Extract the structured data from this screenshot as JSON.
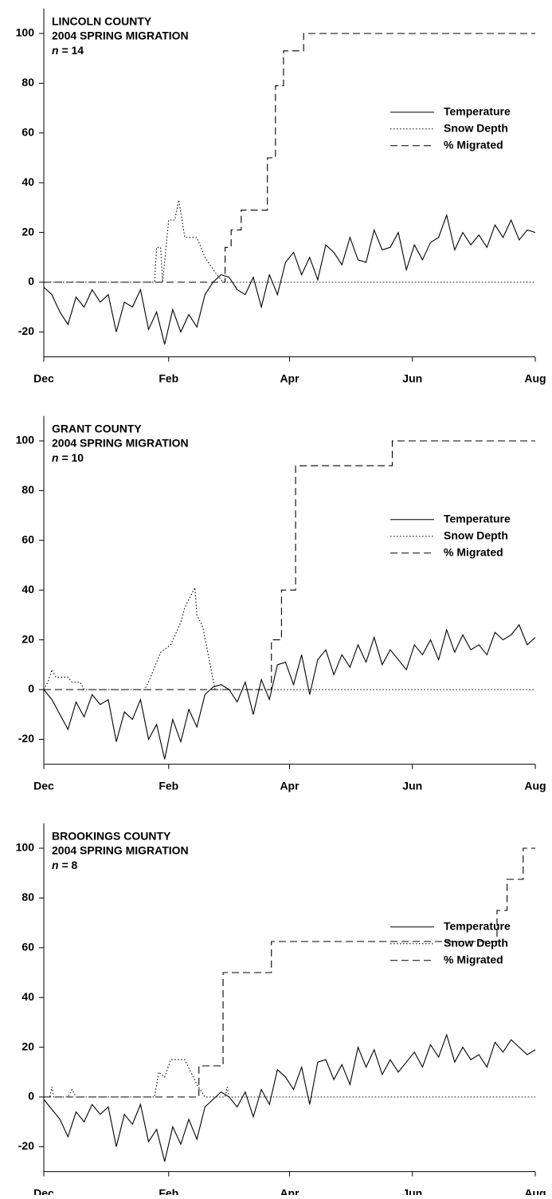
{
  "chart_data": [
    {
      "type": "line",
      "title": "LINCOLN COUNTY",
      "subtitle": "2004 SPRING MIGRATION",
      "annotation": "n = 14",
      "xlim": [
        0,
        244
      ],
      "xticks": [
        {
          "value": 0,
          "label": "Dec"
        },
        {
          "value": 62,
          "label": "Feb"
        },
        {
          "value": 122,
          "label": "Apr"
        },
        {
          "value": 183,
          "label": "Jun"
        },
        {
          "value": 244,
          "label": "Aug"
        }
      ],
      "ylim": [
        -30,
        110
      ],
      "yticks": [
        -20,
        0,
        20,
        40,
        60,
        80,
        100
      ],
      "legend": "right",
      "series": [
        {
          "name": "Temperature",
          "color": "#000000",
          "dash": "solid",
          "x": [
            0,
            4,
            8,
            12,
            16,
            20,
            24,
            28,
            32,
            36,
            40,
            44,
            48,
            52,
            56,
            60,
            64,
            68,
            72,
            76,
            80,
            84,
            88,
            92,
            96,
            100,
            104,
            108,
            112,
            116,
            120,
            124,
            128,
            132,
            136,
            140,
            144,
            148,
            152,
            156,
            160,
            164,
            168,
            172,
            176,
            180,
            184,
            188,
            192,
            196,
            200,
            204,
            208,
            212,
            216,
            220,
            224,
            228,
            232,
            236,
            240,
            244
          ],
          "values": [
            -2,
            -5,
            -12,
            -17,
            -6,
            -10,
            -3,
            -8,
            -5,
            -20,
            -8,
            -10,
            -3,
            -19,
            -12,
            -25,
            -11,
            -20,
            -13,
            -18,
            -5,
            0,
            3,
            2,
            -3,
            -5,
            2,
            -10,
            3,
            -5,
            8,
            12,
            3,
            10,
            1,
            15,
            12,
            7,
            18,
            9,
            8,
            21,
            13,
            14,
            20,
            5,
            15,
            9,
            16,
            18,
            27,
            13,
            20,
            15,
            19,
            14,
            23,
            18,
            25,
            17,
            21,
            20
          ]
        },
        {
          "name": "Snow Depth",
          "color": "#000000",
          "dash": "dotted",
          "x": [
            0,
            55,
            56,
            58,
            59,
            62,
            65,
            67,
            68,
            70,
            76,
            80,
            85,
            89,
            244
          ],
          "values": [
            0,
            0,
            14,
            14,
            0,
            25,
            25,
            33,
            28,
            18,
            18,
            10,
            4,
            0,
            0
          ]
        },
        {
          "name": "% Migrated",
          "color": "#000000",
          "dash": "dashed",
          "step": "post",
          "x": [
            0,
            90,
            93,
            98,
            111,
            115,
            119,
            129,
            244
          ],
          "values": [
            0,
            14,
            21,
            29,
            50,
            79,
            93,
            100,
            100
          ]
        }
      ]
    },
    {
      "type": "line",
      "title": "GRANT COUNTY",
      "subtitle": "2004 SPRING MIGRATION",
      "annotation": "n = 10",
      "xlim": [
        0,
        244
      ],
      "xticks": [
        {
          "value": 0,
          "label": "Dec"
        },
        {
          "value": 62,
          "label": "Feb"
        },
        {
          "value": 122,
          "label": "Apr"
        },
        {
          "value": 183,
          "label": "Jun"
        },
        {
          "value": 244,
          "label": "Aug"
        }
      ],
      "ylim": [
        -30,
        110
      ],
      "yticks": [
        -20,
        0,
        20,
        40,
        60,
        80,
        100
      ],
      "legend": "right",
      "series": [
        {
          "name": "Temperature",
          "color": "#000000",
          "dash": "solid",
          "x": [
            0,
            4,
            8,
            12,
            16,
            20,
            24,
            28,
            32,
            36,
            40,
            44,
            48,
            52,
            56,
            60,
            64,
            68,
            72,
            76,
            80,
            84,
            88,
            92,
            96,
            100,
            104,
            108,
            112,
            116,
            120,
            124,
            128,
            132,
            136,
            140,
            144,
            148,
            152,
            156,
            160,
            164,
            168,
            172,
            176,
            180,
            184,
            188,
            192,
            196,
            200,
            204,
            208,
            212,
            216,
            220,
            224,
            228,
            232,
            236,
            240,
            244
          ],
          "values": [
            0,
            -4,
            -10,
            -16,
            -5,
            -11,
            -2,
            -6,
            -4,
            -21,
            -9,
            -12,
            -4,
            -20,
            -14,
            -28,
            -12,
            -21,
            -8,
            -15,
            -2,
            1,
            2,
            0,
            -5,
            3,
            -10,
            4,
            -4,
            10,
            11,
            2,
            14,
            -2,
            12,
            16,
            6,
            14,
            9,
            18,
            11,
            21,
            10,
            16,
            12,
            8,
            18,
            14,
            20,
            12,
            24,
            15,
            22,
            16,
            18,
            14,
            23,
            20,
            22,
            26,
            18,
            21
          ]
        },
        {
          "name": "Snow Depth",
          "color": "#000000",
          "dash": "dotted",
          "x": [
            0,
            2,
            4,
            6,
            12,
            14,
            18,
            20,
            50,
            52,
            58,
            63,
            68,
            70,
            75,
            76,
            79,
            85,
            244
          ],
          "values": [
            0,
            3,
            8,
            5,
            5,
            3,
            3,
            0,
            0,
            3,
            15,
            18,
            27,
            33,
            41,
            30,
            25,
            0,
            0
          ]
        },
        {
          "name": "% Migrated",
          "color": "#000000",
          "dash": "dashed",
          "step": "post",
          "x": [
            0,
            113,
            118,
            125,
            173,
            244
          ],
          "values": [
            0,
            20,
            40,
            90,
            100,
            100
          ]
        }
      ]
    },
    {
      "type": "line",
      "title": "BROOKINGS COUNTY",
      "subtitle": "2004 SPRING MIGRATION",
      "annotation": "n = 8",
      "xlim": [
        0,
        244
      ],
      "xticks": [
        {
          "value": 0,
          "label": "Dec"
        },
        {
          "value": 62,
          "label": "Feb"
        },
        {
          "value": 122,
          "label": "Apr"
        },
        {
          "value": 183,
          "label": "Jun"
        },
        {
          "value": 244,
          "label": "Aug"
        }
      ],
      "ylim": [
        -30,
        110
      ],
      "yticks": [
        -20,
        0,
        20,
        40,
        60,
        80,
        100
      ],
      "legend": "right",
      "series": [
        {
          "name": "Temperature",
          "color": "#000000",
          "dash": "solid",
          "x": [
            0,
            4,
            8,
            12,
            16,
            20,
            24,
            28,
            32,
            36,
            40,
            44,
            48,
            52,
            56,
            60,
            64,
            68,
            72,
            76,
            80,
            84,
            88,
            92,
            96,
            100,
            104,
            108,
            112,
            116,
            120,
            124,
            128,
            132,
            136,
            140,
            144,
            148,
            152,
            156,
            160,
            164,
            168,
            172,
            176,
            180,
            184,
            188,
            192,
            196,
            200,
            204,
            208,
            212,
            216,
            220,
            224,
            228,
            232,
            236,
            240,
            244
          ],
          "values": [
            -1,
            -5,
            -9,
            -16,
            -6,
            -10,
            -3,
            -7,
            -4,
            -20,
            -7,
            -11,
            -3,
            -18,
            -13,
            -26,
            -12,
            -19,
            -9,
            -17,
            -4,
            -1,
            2,
            0,
            -4,
            2,
            -8,
            3,
            -3,
            11,
            8,
            3,
            12,
            -3,
            14,
            15,
            7,
            13,
            5,
            20,
            12,
            19,
            9,
            15,
            10,
            14,
            18,
            12,
            21,
            16,
            25,
            14,
            20,
            15,
            17,
            12,
            22,
            18,
            23,
            20,
            17,
            19
          ]
        },
        {
          "name": "Snow Depth",
          "color": "#000000",
          "dash": "dotted",
          "x": [
            0,
            3,
            4,
            5,
            12,
            14,
            16,
            55,
            57,
            60,
            63,
            70,
            73,
            76,
            80,
            90,
            91,
            92,
            244
          ],
          "values": [
            0,
            0,
            4,
            0,
            0,
            3,
            0,
            0,
            10,
            8,
            15,
            15,
            10,
            5,
            0,
            0,
            4,
            0,
            0
          ]
        },
        {
          "name": "% Migrated",
          "color": "#000000",
          "dash": "dashed",
          "step": "post",
          "x": [
            0,
            77,
            89,
            113,
            225,
            230,
            238,
            244
          ],
          "values": [
            0,
            12.5,
            50,
            62.5,
            75,
            87.5,
            100,
            100
          ]
        }
      ]
    }
  ]
}
